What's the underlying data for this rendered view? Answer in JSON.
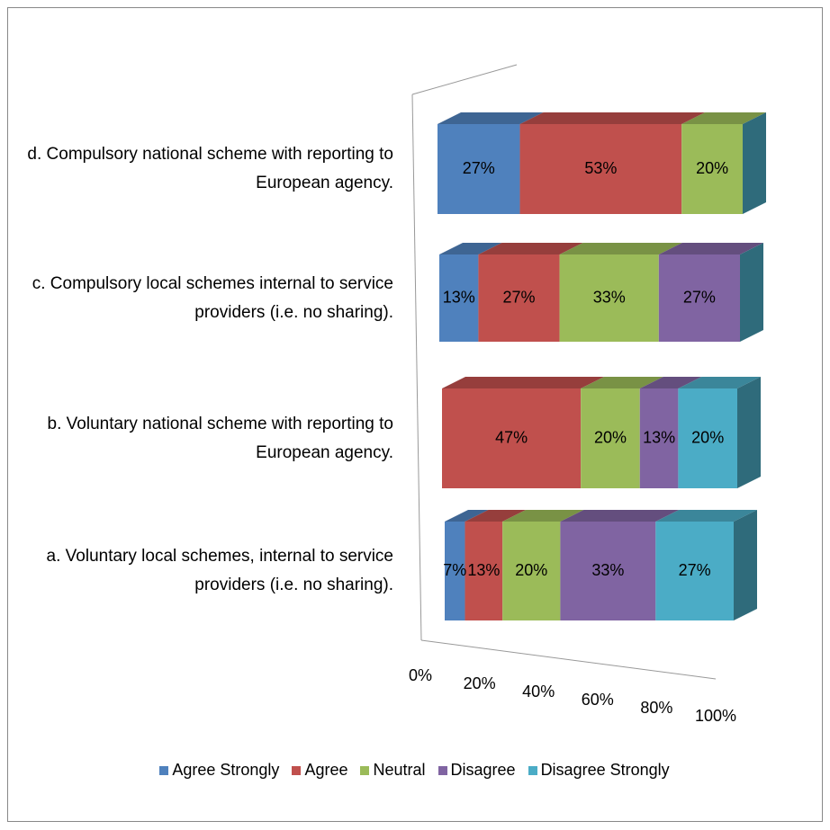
{
  "chart_data": {
    "type": "bar3d_stacked_horizontal",
    "categories": [
      "a. Voluntary local schemes, internal to service providers (i.e. no sharing).",
      "b. Voluntary national scheme with reporting to European agency.",
      "c. Compulsory local schemes internal to service providers (i.e. no sharing).",
      "d. Compulsory national scheme with reporting to European agency."
    ],
    "series": [
      {
        "name": "Agree Strongly",
        "color": "#4f81bd",
        "values": [
          7,
          0,
          13,
          27
        ],
        "value_labels": [
          "7%",
          null,
          "13%",
          "27%"
        ]
      },
      {
        "name": "Agree",
        "color": "#c0504d",
        "values": [
          13,
          47,
          27,
          53
        ],
        "value_labels": [
          "13%",
          "47%",
          "27%",
          "53%"
        ]
      },
      {
        "name": "Neutral",
        "color": "#9bbb59",
        "values": [
          20,
          20,
          33,
          20
        ],
        "value_labels": [
          "20%",
          "20%",
          "33%",
          "20%"
        ]
      },
      {
        "name": "Disagree",
        "color": "#8064a2",
        "values": [
          33,
          13,
          27,
          0
        ],
        "value_labels": [
          "33%",
          "13%",
          "27%",
          null
        ]
      },
      {
        "name": "Disagree Strongly",
        "color": "#4bacc6",
        "values": [
          27,
          20,
          0,
          0
        ],
        "value_labels": [
          "27%",
          "20%",
          null,
          null
        ]
      }
    ],
    "xlim": [
      0,
      100
    ],
    "xticks": [
      {
        "value": 0,
        "label": "0%"
      },
      {
        "value": 20,
        "label": "20%"
      },
      {
        "value": 40,
        "label": "40%"
      },
      {
        "value": 60,
        "label": "60%"
      },
      {
        "value": 80,
        "label": "80%"
      },
      {
        "value": 100,
        "label": "100%"
      }
    ],
    "grid": false,
    "legend": "bottom"
  }
}
